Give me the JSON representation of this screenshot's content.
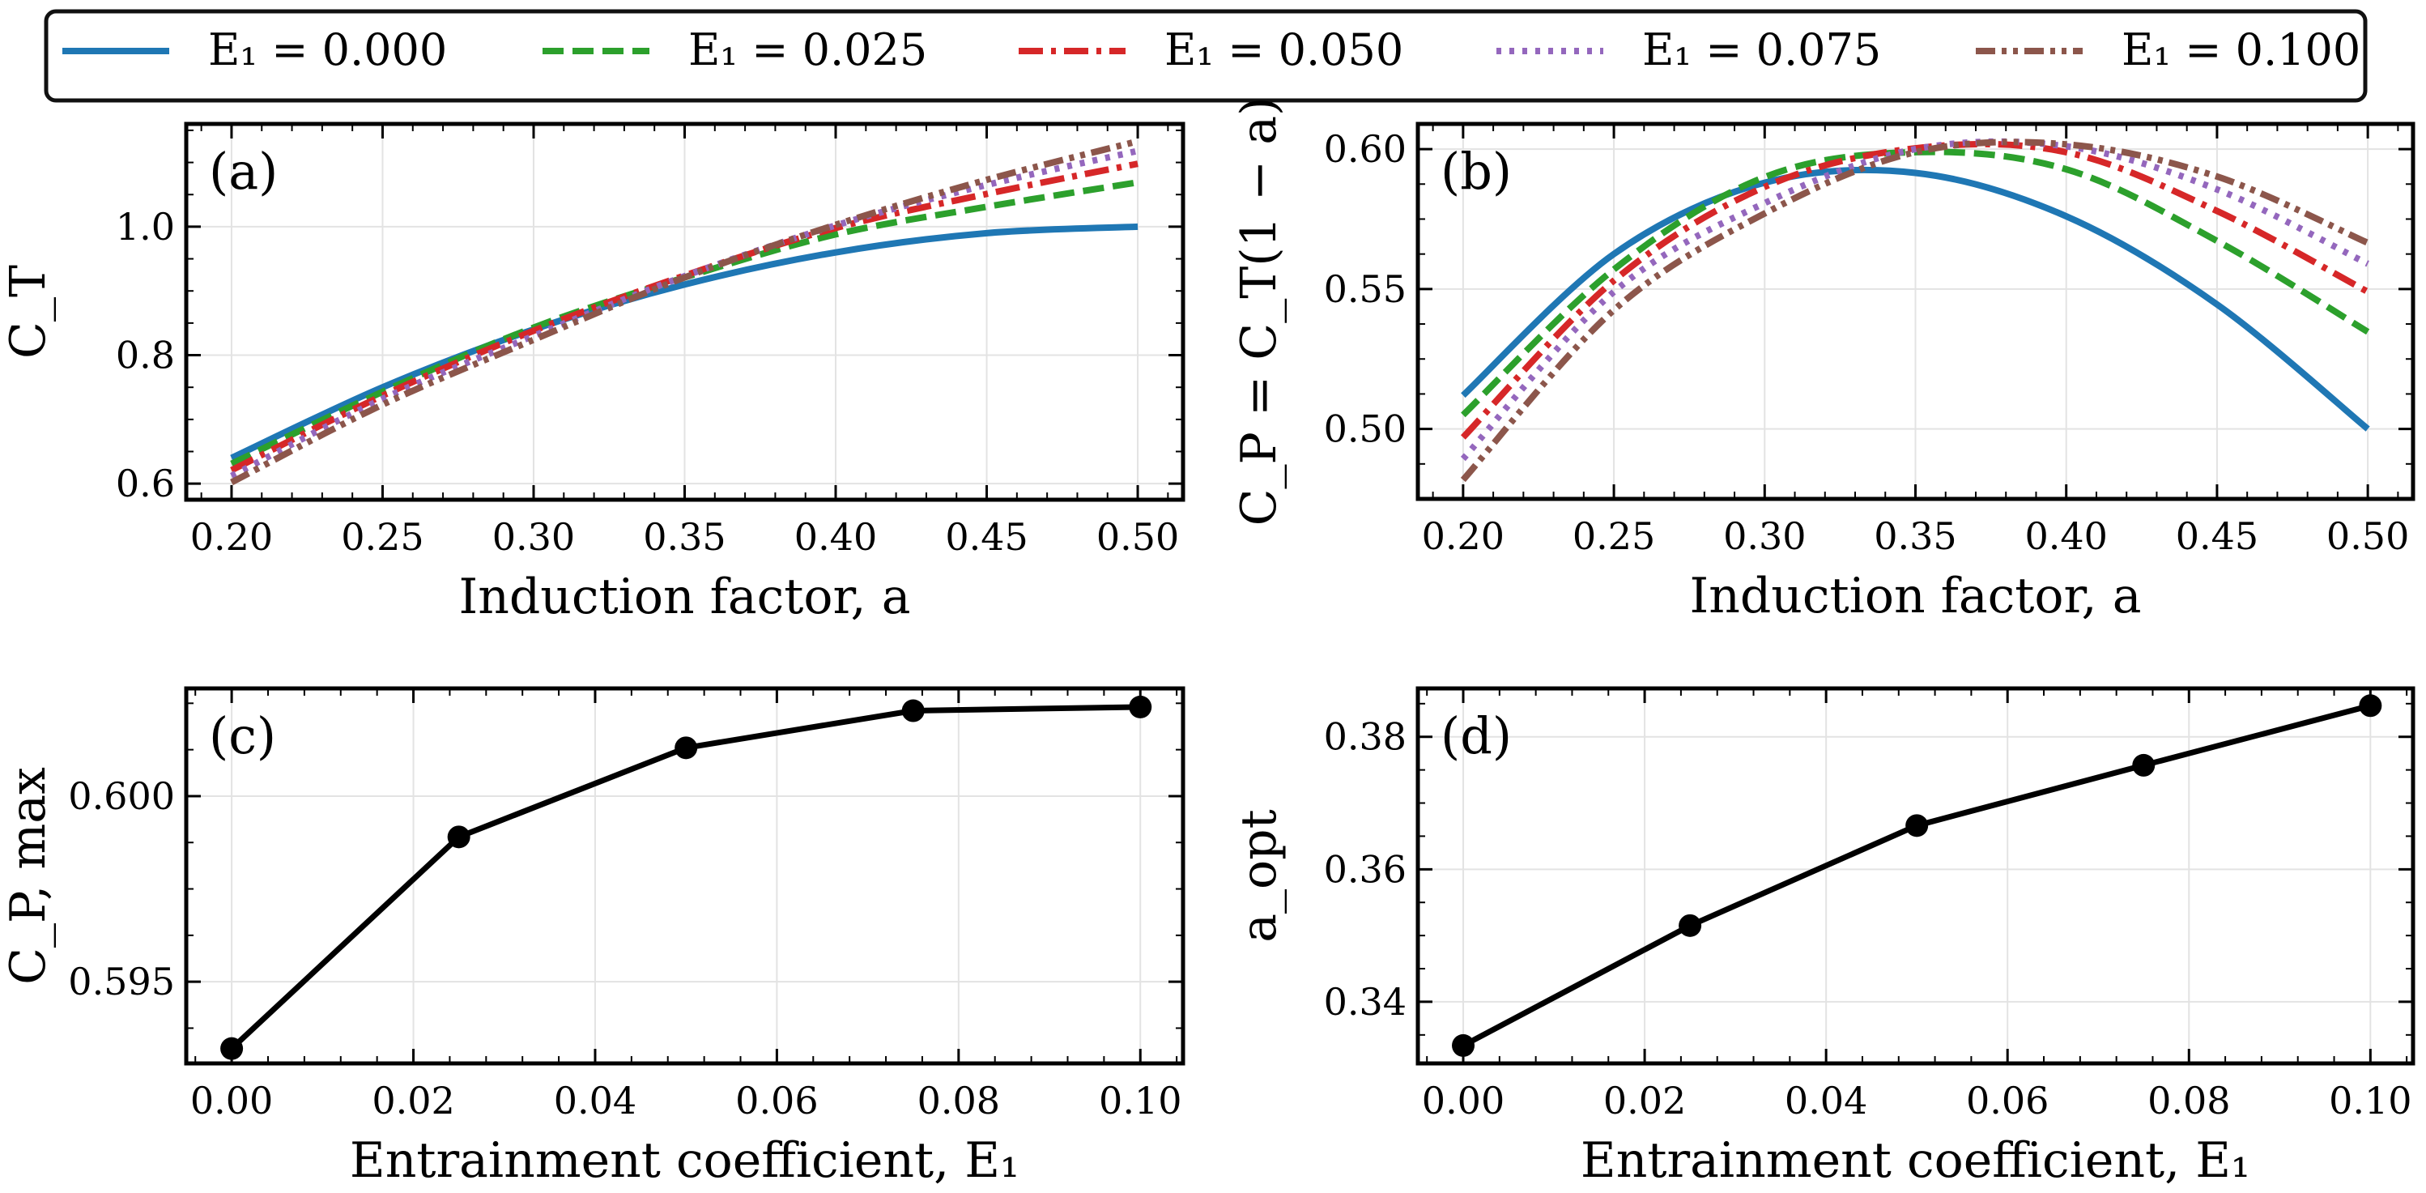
{
  "legend": {
    "position": "top-center",
    "entries": [
      {
        "label": "E₁ = 0.000",
        "E1": 0.0,
        "color": "#1f77b4",
        "style": "solid"
      },
      {
        "label": "E₁ = 0.025",
        "E1": 0.025,
        "color": "#2ca02c",
        "style": "dashed"
      },
      {
        "label": "E₁ = 0.050",
        "E1": 0.05,
        "color": "#d62728",
        "style": "dashdot"
      },
      {
        "label": "E₁ = 0.075",
        "E1": 0.075,
        "color": "#9467bd",
        "style": "dotted"
      },
      {
        "label": "E₁ = 0.100",
        "E1": 0.1,
        "color": "#8c564b",
        "style": "dashdotdot"
      }
    ]
  },
  "chart_data": [
    {
      "panel": "(a)",
      "type": "line",
      "xlabel": "Induction factor, a",
      "ylabel": "C_T",
      "xlim": [
        0.185,
        0.515
      ],
      "ylim": [
        0.575,
        1.16
      ],
      "xticks": [
        0.2,
        0.25,
        0.3,
        0.35,
        0.4,
        0.45,
        0.5
      ],
      "xtick_labels": [
        "0.20",
        "0.25",
        "0.30",
        "0.35",
        "0.40",
        "0.45",
        "0.50"
      ],
      "yticks": [
        0.6,
        0.8,
        1.0
      ],
      "ytick_labels": [
        "0.6",
        "0.8",
        "1.0"
      ],
      "grid": true,
      "x": [
        0.2,
        0.25,
        0.3,
        0.35,
        0.4,
        0.45,
        0.5
      ],
      "series": [
        {
          "name": "E₁ = 0.000",
          "values": [
            0.64,
            0.75,
            0.84,
            0.91,
            0.96,
            0.99,
            1.0
          ]
        },
        {
          "name": "E₁ = 0.025",
          "values": [
            0.631,
            0.743,
            0.843,
            0.921,
            0.988,
            1.031,
            1.069
          ]
        },
        {
          "name": "E₁ = 0.050",
          "values": [
            0.621,
            0.737,
            0.838,
            0.924,
            0.998,
            1.051,
            1.098
          ]
        },
        {
          "name": "E₁ = 0.075",
          "values": [
            0.612,
            0.732,
            0.83,
            0.923,
            1.002,
            1.065,
            1.118
          ]
        },
        {
          "name": "E₁ = 0.100",
          "values": [
            0.602,
            0.723,
            0.824,
            0.921,
            1.003,
            1.073,
            1.133
          ]
        }
      ]
    },
    {
      "panel": "(b)",
      "type": "line",
      "xlabel": "Induction factor, a",
      "ylabel": "C_P = C_T(1 − a)",
      "xlim": [
        0.185,
        0.515
      ],
      "ylim": [
        0.475,
        0.609
      ],
      "xticks": [
        0.2,
        0.25,
        0.3,
        0.35,
        0.4,
        0.45,
        0.5
      ],
      "xtick_labels": [
        "0.20",
        "0.25",
        "0.30",
        "0.35",
        "0.40",
        "0.45",
        "0.50"
      ],
      "yticks": [
        0.5,
        0.55,
        0.6
      ],
      "ytick_labels": [
        "0.50",
        "0.55",
        "0.60"
      ],
      "grid": true,
      "x": [
        0.2,
        0.25,
        0.3,
        0.35,
        0.4,
        0.45,
        0.5
      ],
      "series": [
        {
          "name": "E₁ = 0.000",
          "values": [
            0.512,
            0.5625,
            0.588,
            0.5915,
            0.576,
            0.5445,
            0.5
          ]
        },
        {
          "name": "E₁ = 0.025",
          "values": [
            0.505,
            0.557,
            0.59,
            0.5989,
            0.5928,
            0.5672,
            0.5347
          ]
        },
        {
          "name": "E₁ = 0.050",
          "values": [
            0.497,
            0.553,
            0.5865,
            0.6003,
            0.5989,
            0.5779,
            0.549
          ]
        },
        {
          "name": "E₁ = 0.075",
          "values": [
            0.4893,
            0.549,
            0.5807,
            0.6,
            0.601,
            0.5856,
            0.559
          ]
        },
        {
          "name": "E₁ = 0.100",
          "values": [
            0.4818,
            0.5425,
            0.577,
            0.5989,
            0.6017,
            0.5902,
            0.5665
          ]
        }
      ]
    },
    {
      "panel": "(c)",
      "type": "line",
      "xlabel": "Entrainment coefficient, E₁",
      "ylabel": "C_P, max",
      "xlim": [
        -0.005,
        0.1047
      ],
      "ylim": [
        0.5928,
        0.6029
      ],
      "xticks": [
        0.0,
        0.02,
        0.04,
        0.06,
        0.08,
        0.1
      ],
      "xtick_labels": [
        "0.00",
        "0.02",
        "0.04",
        "0.06",
        "0.08",
        "0.10"
      ],
      "yticks": [
        0.595,
        0.6
      ],
      "ytick_labels": [
        "0.595",
        "0.600"
      ],
      "grid": true,
      "x": [
        0.0,
        0.025,
        0.05,
        0.075,
        0.1
      ],
      "values": [
        0.5932,
        0.5989,
        0.6013,
        0.6023,
        0.6024
      ],
      "marker": "circle",
      "color": "#000000"
    },
    {
      "panel": "(d)",
      "type": "line",
      "xlabel": "Entrainment coefficient, E₁",
      "ylabel": "a_opt",
      "xlim": [
        -0.005,
        0.1047
      ],
      "ylim": [
        0.3307,
        0.3873
      ],
      "xticks": [
        0.0,
        0.02,
        0.04,
        0.06,
        0.08,
        0.1
      ],
      "xtick_labels": [
        "0.00",
        "0.02",
        "0.04",
        "0.06",
        "0.08",
        "0.10"
      ],
      "yticks": [
        0.34,
        0.36,
        0.38
      ],
      "ytick_labels": [
        "0.34",
        "0.36",
        "0.38"
      ],
      "grid": true,
      "x": [
        0.0,
        0.025,
        0.05,
        0.075,
        0.1
      ],
      "values": [
        0.3334,
        0.3515,
        0.3666,
        0.3757,
        0.3847
      ],
      "marker": "circle",
      "color": "#000000"
    }
  ]
}
